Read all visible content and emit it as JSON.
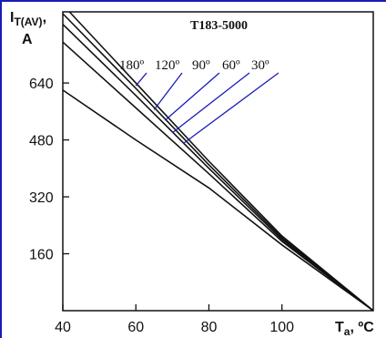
{
  "chart_data": {
    "type": "line",
    "title": "T183-5000",
    "ylabel_main": "I",
    "ylabel_sub": "T(AV)",
    "ylabel_tail": ",",
    "ylabel_unit": "A",
    "xlabel_main": "T",
    "xlabel_sub": "a",
    "xlabel_tail": ", ºC",
    "xlim": [
      40,
      125
    ],
    "ylim": [
      0,
      840
    ],
    "xticks": [
      40,
      60,
      80,
      100
    ],
    "yticks": [
      160,
      320,
      480,
      640
    ],
    "grid": false,
    "series": [
      {
        "name": "180º",
        "x": [
          40,
          60,
          80,
          100,
          125
        ],
        "y": [
          860,
          640,
          420,
          210,
          0
        ]
      },
      {
        "name": "120º",
        "x": [
          40,
          60,
          80,
          100,
          125
        ],
        "y": [
          835,
          625,
          410,
          205,
          0
        ]
      },
      {
        "name": "90º",
        "x": [
          40,
          60,
          80,
          100,
          125
        ],
        "y": [
          805,
          605,
          400,
          200,
          0
        ]
      },
      {
        "name": "60º",
        "x": [
          40,
          60,
          80,
          100,
          125
        ],
        "y": [
          755,
          570,
          385,
          195,
          0
        ]
      },
      {
        "name": "30º",
        "x": [
          40,
          60,
          80,
          100,
          125
        ],
        "y": [
          620,
          480,
          345,
          185,
          0
        ]
      }
    ],
    "annotations": [
      {
        "label": "180º",
        "point": [
          60,
          632
        ]
      },
      {
        "label": "120º",
        "point": [
          65,
          565
        ]
      },
      {
        "label": "90º",
        "point": [
          68,
          535
        ]
      },
      {
        "label": "60º",
        "point": [
          70,
          500
        ]
      },
      {
        "label": "30º",
        "point": [
          73,
          470
        ]
      }
    ],
    "annotation_color": "#1a1ab8"
  }
}
